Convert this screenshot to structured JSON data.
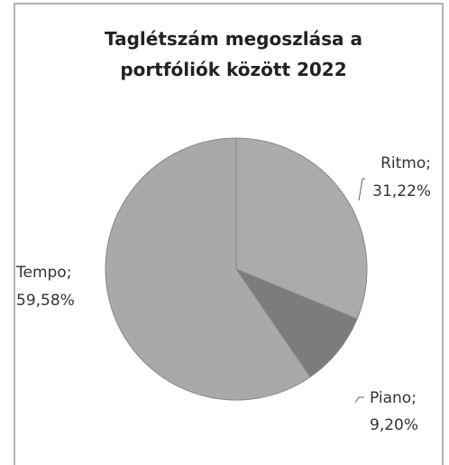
{
  "chart_data": {
    "type": "pie",
    "title": "Taglétszám megoszlása a portfóliók között 2022",
    "categories": [
      "Ritmo;",
      "Piano;",
      "Tempo;"
    ],
    "values": [
      31.22,
      9.2,
      59.58
    ],
    "value_labels": [
      "31,22%",
      "9,20%",
      "59,58%"
    ],
    "colors": [
      "#ababab",
      "#7c7c7c",
      "#a9a9a9"
    ]
  }
}
